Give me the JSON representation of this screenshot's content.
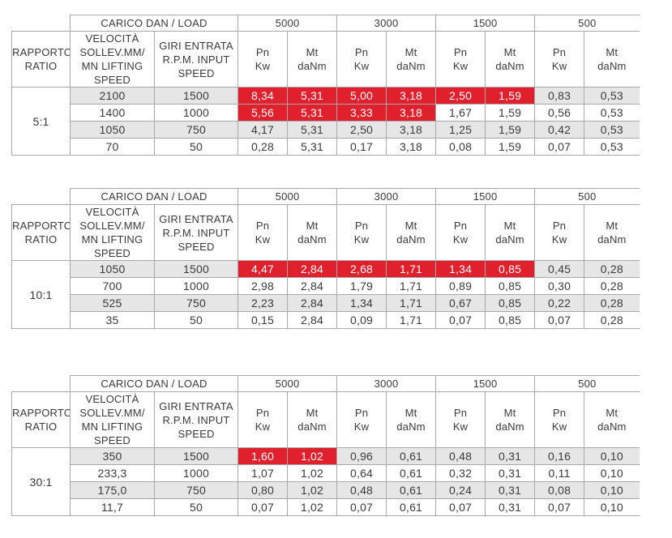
{
  "headers": {
    "load": "CARICO DAN / LOAD",
    "ratio": "RAPPORTO RATIO",
    "speed": "VELOCITÀ SOLLEV.MM/ MN LIFTING SPEED",
    "rpm": "GIRI ENTRATA R.P.M. INPUT SPEED",
    "loads": [
      "5000",
      "3000",
      "1500",
      "500"
    ],
    "pn": "Pn",
    "kw": "Kw",
    "mt": "Mt",
    "danm": "daNm"
  },
  "colors": {
    "highlight": "#e1202d",
    "stripe": "#e6e6e6"
  },
  "tables": [
    {
      "ratio": "5:1",
      "rows": [
        {
          "speed": "2100",
          "rpm": "1500",
          "vals": [
            "8,34",
            "5,31",
            "5,00",
            "3,18",
            "2,50",
            "1,59",
            "0,83",
            "0,53"
          ],
          "red": [
            0,
            1,
            2,
            3,
            4,
            5
          ]
        },
        {
          "speed": "1400",
          "rpm": "1000",
          "vals": [
            "5,56",
            "5,31",
            "3,33",
            "3,18",
            "1,67",
            "1,59",
            "0,56",
            "0,53"
          ],
          "red": [
            0,
            1,
            2,
            3
          ]
        },
        {
          "speed": "1050",
          "rpm": "750",
          "vals": [
            "4,17",
            "5,31",
            "2,50",
            "3,18",
            "1,25",
            "1,59",
            "0,42",
            "0,53"
          ],
          "red": []
        },
        {
          "speed": "70",
          "rpm": "50",
          "vals": [
            "0,28",
            "5,31",
            "0,17",
            "3,18",
            "0,08",
            "1,59",
            "0,07",
            "0,53"
          ],
          "red": []
        }
      ]
    },
    {
      "ratio": "10:1",
      "rows": [
        {
          "speed": "1050",
          "rpm": "1500",
          "vals": [
            "4,47",
            "2,84",
            "2,68",
            "1,71",
            "1,34",
            "0,85",
            "0,45",
            "0,28"
          ],
          "red": [
            0,
            1,
            2,
            3,
            4,
            5
          ]
        },
        {
          "speed": "700",
          "rpm": "1000",
          "vals": [
            "2,98",
            "2,84",
            "1,79",
            "1,71",
            "0,89",
            "0,85",
            "0,30",
            "0,28"
          ],
          "red": []
        },
        {
          "speed": "525",
          "rpm": "750",
          "vals": [
            "2,23",
            "2,84",
            "1,34",
            "1,71",
            "0,67",
            "0,85",
            "0,22",
            "0,28"
          ],
          "red": []
        },
        {
          "speed": "35",
          "rpm": "50",
          "vals": [
            "0,15",
            "2,84",
            "0,09",
            "1,71",
            "0,07",
            "0,85",
            "0,07",
            "0,28"
          ],
          "red": []
        }
      ]
    },
    {
      "ratio": "30:1",
      "rows": [
        {
          "speed": "350",
          "rpm": "1500",
          "vals": [
            "1,60",
            "1,02",
            "0,96",
            "0,61",
            "0,48",
            "0,31",
            "0,16",
            "0,10"
          ],
          "red": [
            0,
            1
          ]
        },
        {
          "speed": "233,3",
          "rpm": "1000",
          "vals": [
            "1,07",
            "1,02",
            "0,64",
            "0,61",
            "0,32",
            "0,31",
            "0,11",
            "0,10"
          ],
          "red": []
        },
        {
          "speed": "175,0",
          "rpm": "750",
          "vals": [
            "0,80",
            "1,02",
            "0,48",
            "0,61",
            "0,24",
            "0,31",
            "0,08",
            "0,10"
          ],
          "red": []
        },
        {
          "speed": "11,7",
          "rpm": "50",
          "vals": [
            "0,07",
            "1,02",
            "0,07",
            "0,61",
            "0,07",
            "0,31",
            "0,07",
            "0,10"
          ],
          "red": []
        }
      ]
    }
  ]
}
